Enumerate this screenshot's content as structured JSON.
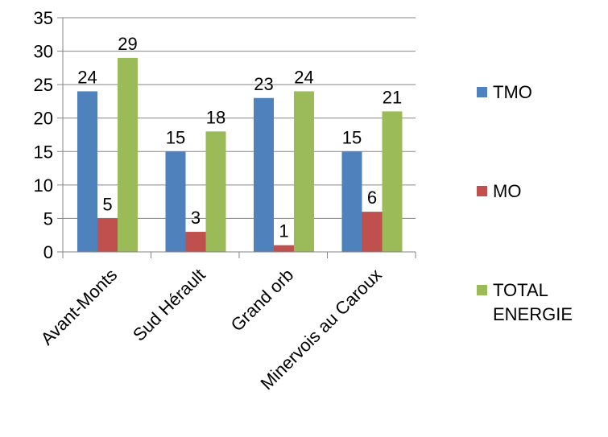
{
  "chart_data": {
    "type": "bar",
    "title": "",
    "xlabel": "",
    "ylabel": "",
    "categories": [
      "Avant-Monts",
      "Sud Hérault",
      "Grand orb",
      "Minervois au Caroux"
    ],
    "series": [
      {
        "name": "TMO",
        "color": "#4F81BD",
        "values": [
          24,
          15,
          23,
          15
        ]
      },
      {
        "name": "MO",
        "color": "#C0504D",
        "values": [
          5,
          3,
          1,
          6
        ]
      },
      {
        "name": "TOTAL ENERGIE",
        "color": "#9BBB59",
        "values": [
          29,
          18,
          24,
          21
        ]
      }
    ],
    "ylim": [
      0,
      35
    ],
    "yticks": [
      0,
      5,
      10,
      15,
      20,
      25,
      30,
      35
    ],
    "grid": true,
    "data_labels": true,
    "legend_position": "right"
  }
}
